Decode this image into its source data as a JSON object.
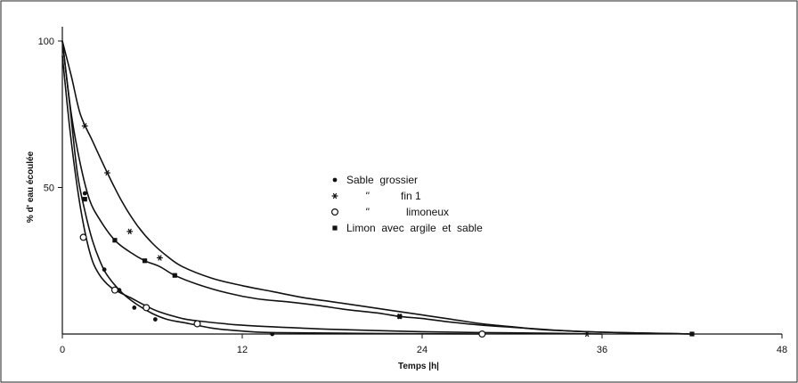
{
  "chart_data": {
    "type": "line",
    "title": "",
    "xlabel": "Temps |h|",
    "ylabel": "% d' eau écoulée",
    "xlim": [
      0,
      48
    ],
    "ylim": [
      0,
      100
    ],
    "x_ticks": [
      "0",
      "12",
      "24",
      "36",
      "48"
    ],
    "y_ticks": [
      "50",
      "100"
    ],
    "grid": false,
    "legend_position": "center",
    "legend": [
      {
        "marker": "dot",
        "text": "Sable  grossier"
      },
      {
        "marker": "star",
        "ditto": "\"",
        "text": "fin 1"
      },
      {
        "marker": "circle",
        "ditto": "\"",
        "text": "limoneux"
      },
      {
        "marker": "square",
        "text": "Limon  avec  argile  et  sable"
      }
    ],
    "series": [
      {
        "marker": "dot",
        "curve": [
          [
            0,
            100
          ],
          [
            0.5,
            78
          ],
          [
            1,
            55
          ],
          [
            1.5,
            42
          ],
          [
            2,
            32
          ],
          [
            2.5,
            25
          ],
          [
            3,
            20
          ],
          [
            4,
            14
          ],
          [
            5,
            10
          ],
          [
            6,
            7
          ],
          [
            7,
            5
          ],
          [
            8.5,
            3.5
          ],
          [
            10,
            2
          ],
          [
            12,
            1
          ],
          [
            14,
            0.5
          ],
          [
            20,
            0.2
          ],
          [
            28,
            0
          ]
        ],
        "points": [
          [
            1.5,
            48
          ],
          [
            2.8,
            22
          ],
          [
            3.8,
            15
          ],
          [
            4.8,
            9
          ],
          [
            6.2,
            5
          ],
          [
            14,
            0
          ]
        ]
      },
      {
        "marker": "star",
        "curve": [
          [
            0,
            100
          ],
          [
            0.6,
            88
          ],
          [
            1.2,
            75
          ],
          [
            2,
            66
          ],
          [
            3,
            55
          ],
          [
            4,
            45
          ],
          [
            5,
            37
          ],
          [
            6,
            31
          ],
          [
            7,
            26.5
          ],
          [
            8,
            23
          ],
          [
            10,
            19
          ],
          [
            12,
            16.5
          ],
          [
            14,
            14.5
          ],
          [
            16,
            12.5
          ],
          [
            18,
            11
          ],
          [
            20,
            9.5
          ],
          [
            22,
            8
          ],
          [
            24,
            6.5
          ],
          [
            26,
            5
          ],
          [
            28,
            3.5
          ],
          [
            30,
            2.5
          ],
          [
            32,
            1.5
          ],
          [
            35,
            0.8
          ],
          [
            38,
            0.4
          ],
          [
            42,
            0
          ]
        ],
        "points": [
          [
            1.5,
            71
          ],
          [
            3,
            55
          ],
          [
            4.5,
            35
          ],
          [
            6.5,
            26
          ],
          [
            22.5,
            6
          ],
          [
            35,
            0
          ]
        ]
      },
      {
        "marker": "circle",
        "curve": [
          [
            0,
            95
          ],
          [
            0.5,
            70
          ],
          [
            1,
            50
          ],
          [
            1.5,
            35
          ],
          [
            2,
            25
          ],
          [
            2.5,
            20
          ],
          [
            3,
            17
          ],
          [
            3.5,
            15
          ],
          [
            4.5,
            12.5
          ],
          [
            5.5,
            9.8
          ],
          [
            6.5,
            7.5
          ],
          [
            8,
            5.3
          ],
          [
            9,
            4.5
          ],
          [
            12,
            3
          ],
          [
            16,
            2
          ],
          [
            20,
            1.3
          ],
          [
            24,
            0.8
          ],
          [
            28,
            0.5
          ],
          [
            32,
            0.3
          ],
          [
            36,
            0
          ]
        ],
        "points": [
          [
            1.4,
            33
          ],
          [
            3.5,
            15
          ],
          [
            5.6,
            9
          ],
          [
            9,
            3.5
          ],
          [
            28,
            0
          ]
        ]
      },
      {
        "marker": "square",
        "curve": [
          [
            0,
            100
          ],
          [
            0.6,
            75
          ],
          [
            1.2,
            58
          ],
          [
            1.8,
            46
          ],
          [
            2.5,
            39
          ],
          [
            3.5,
            32
          ],
          [
            4.5,
            28
          ],
          [
            5.5,
            25
          ],
          [
            6.5,
            23
          ],
          [
            7.5,
            20
          ],
          [
            9,
            17
          ],
          [
            11,
            14
          ],
          [
            13,
            12
          ],
          [
            15,
            11
          ],
          [
            17,
            9.8
          ],
          [
            19,
            8.3
          ],
          [
            21,
            7.2
          ],
          [
            22.5,
            6
          ],
          [
            24,
            5.3
          ],
          [
            26,
            4
          ],
          [
            28,
            3
          ],
          [
            30,
            2.3
          ],
          [
            32,
            1.6
          ],
          [
            34,
            1
          ],
          [
            36,
            0.6
          ],
          [
            39,
            0.3
          ],
          [
            42,
            0
          ]
        ],
        "points": [
          [
            1.5,
            46
          ],
          [
            3.5,
            32
          ],
          [
            5.5,
            25
          ],
          [
            7.5,
            20
          ],
          [
            22.5,
            6
          ],
          [
            42,
            0
          ]
        ]
      }
    ]
  }
}
